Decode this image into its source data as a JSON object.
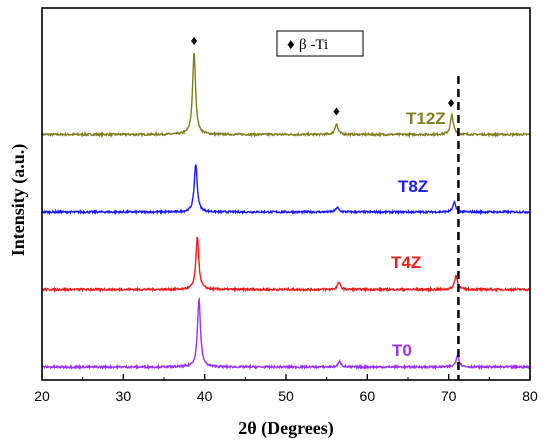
{
  "chart_data": {
    "type": "line",
    "xlabel": "2θ (Degrees)",
    "ylabel": "Intensity (a.u.)",
    "xlim": [
      20,
      80
    ],
    "xticks": [
      "20",
      "30",
      "40",
      "50",
      "60",
      "70",
      "80"
    ],
    "legend": {
      "symbol": "♦",
      "text": "β -Ti",
      "placement": "top-center"
    },
    "reference_line": {
      "x": 71.2,
      "style": "dashed",
      "color": "#000000"
    },
    "markers": [
      {
        "x": 38.7,
        "series": "T12Z",
        "symbol": "♦"
      },
      {
        "x": 56.2,
        "series": "T12Z",
        "symbol": "♦"
      },
      {
        "x": 70.3,
        "series": "T12Z",
        "symbol": "♦"
      }
    ],
    "series": [
      {
        "name": "T12Z",
        "color": "#7f7f1f",
        "baseline": 3.0,
        "peaks": [
          {
            "x": 38.7,
            "height": 1.05
          },
          {
            "x": 56.2,
            "height": 0.14
          },
          {
            "x": 70.4,
            "height": 0.25
          }
        ]
      },
      {
        "name": "T8Z",
        "color": "#1a1aff",
        "baseline": 2.0,
        "peaks": [
          {
            "x": 38.9,
            "height": 0.62
          },
          {
            "x": 56.3,
            "height": 0.06
          },
          {
            "x": 70.7,
            "height": 0.12
          }
        ]
      },
      {
        "name": "T4Z",
        "color": "#ee1c1c",
        "baseline": 1.0,
        "peaks": [
          {
            "x": 39.1,
            "height": 0.67
          },
          {
            "x": 56.5,
            "height": 0.09
          },
          {
            "x": 70.9,
            "height": 0.18
          }
        ]
      },
      {
        "name": "T0",
        "color": "#9b30ff",
        "baseline": 0.0,
        "peaks": [
          {
            "x": 39.3,
            "height": 0.88
          },
          {
            "x": 56.6,
            "height": 0.07
          },
          {
            "x": 71.1,
            "height": 0.16
          }
        ]
      }
    ]
  }
}
